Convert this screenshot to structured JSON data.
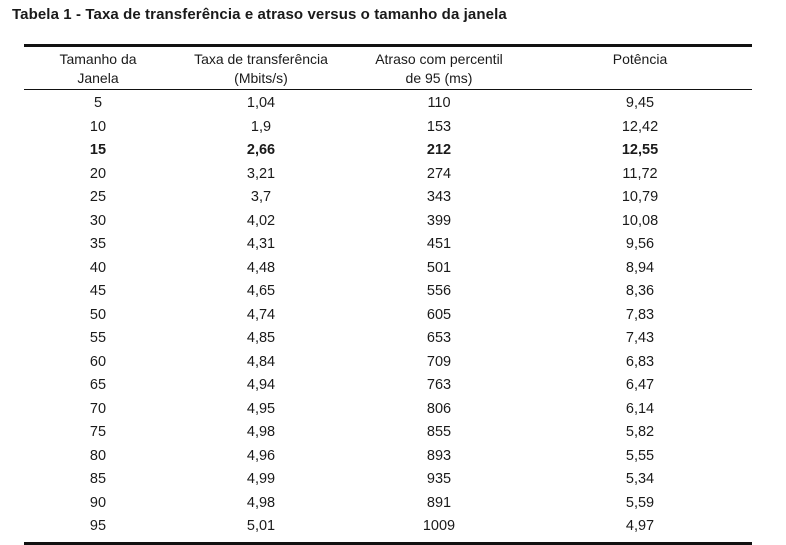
{
  "caption": "Tabela 1 - Taxa de transferência e atraso versus o tamanho da janela",
  "headers": [
    "Tamanho da\nJanela",
    "Taxa de transferência\n(Mbits/s)",
    "Atraso com percentil\nde 95 (ms)",
    "Potência"
  ],
  "highlighted_row_index": 2,
  "rows": [
    [
      "5",
      "1,04",
      "110",
      "9,45"
    ],
    [
      "10",
      "1,9",
      "153",
      "12,42"
    ],
    [
      "15",
      "2,66",
      "212",
      "12,55"
    ],
    [
      "20",
      "3,21",
      "274",
      "11,72"
    ],
    [
      "25",
      "3,7",
      "343",
      "10,79"
    ],
    [
      "30",
      "4,02",
      "399",
      "10,08"
    ],
    [
      "35",
      "4,31",
      "451",
      "9,56"
    ],
    [
      "40",
      "4,48",
      "501",
      "8,94"
    ],
    [
      "45",
      "4,65",
      "556",
      "8,36"
    ],
    [
      "50",
      "4,74",
      "605",
      "7,83"
    ],
    [
      "55",
      "4,85",
      "653",
      "7,43"
    ],
    [
      "60",
      "4,84",
      "709",
      "6,83"
    ],
    [
      "65",
      "4,94",
      "763",
      "6,47"
    ],
    [
      "70",
      "4,95",
      "806",
      "6,14"
    ],
    [
      "75",
      "4,98",
      "855",
      "5,82"
    ],
    [
      "80",
      "4,96",
      "893",
      "5,55"
    ],
    [
      "85",
      "4,99",
      "935",
      "5,34"
    ],
    [
      "90",
      "4,98",
      "891",
      "5,59"
    ],
    [
      "95",
      "5,01",
      "1009",
      "4,97"
    ]
  ]
}
